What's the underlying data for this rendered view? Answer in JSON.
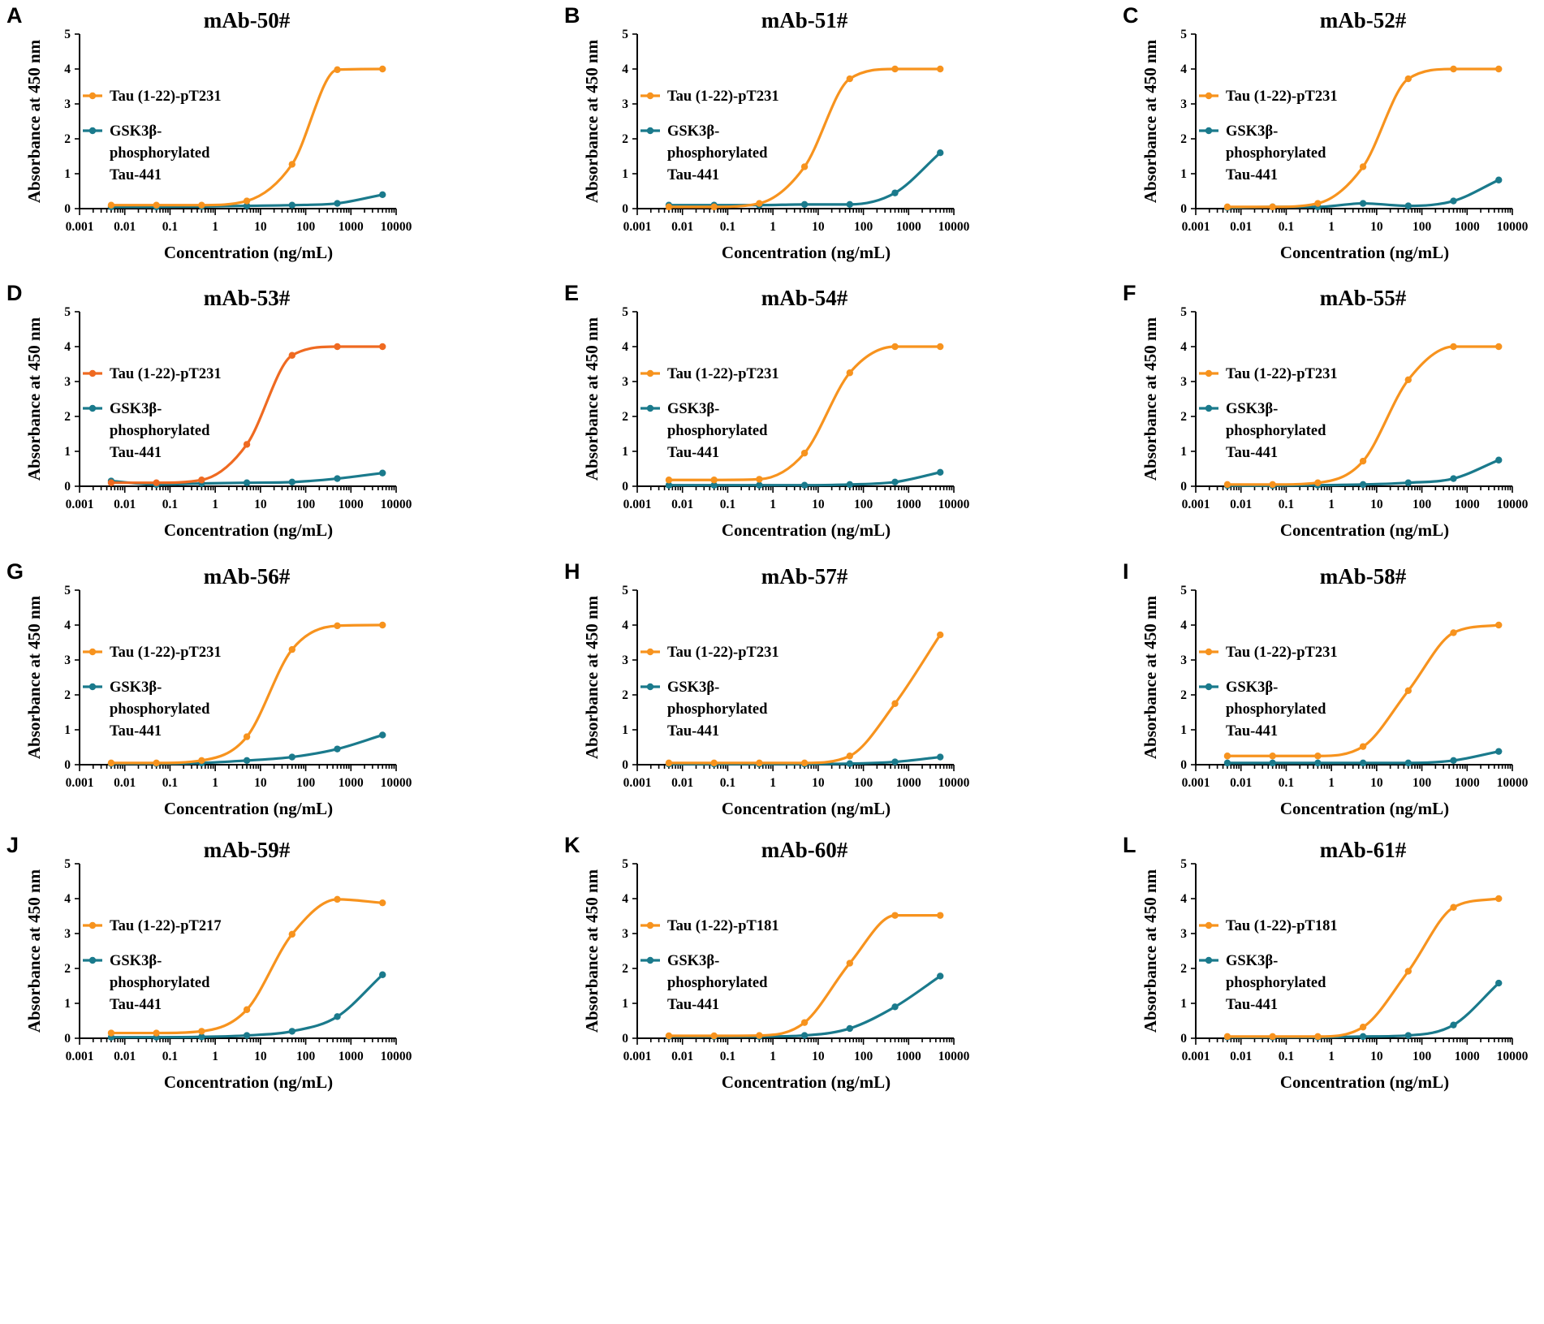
{
  "figure": {
    "colors": {
      "orange": "#F7931E",
      "red_orange": "#EF6A21",
      "teal": "#1A7A8C"
    },
    "x_axis_label": "Concentration (ng/mL)",
    "y_axis_label": "Absorbance at 450 nm",
    "x_tick_labels": [
      "0.001",
      "0.01",
      "0.1",
      "1",
      "10",
      "100",
      "1000",
      "10000"
    ],
    "y_tick_labels": [
      "0",
      "1",
      "2",
      "3",
      "4",
      "5"
    ]
  },
  "chart_data": [
    {
      "type": "line",
      "panel": "A",
      "title": "mAb-50#",
      "xscale": "log",
      "xlim": [
        0.001,
        10000
      ],
      "ylim": [
        0,
        5
      ],
      "xlabel": "Concentration (ng/mL)",
      "ylabel": "Absorbance at 450 nm",
      "x": [
        0.005,
        0.05,
        0.5,
        5,
        50,
        500,
        5000
      ],
      "series": [
        {
          "name": "Tau (1-22)-pT231",
          "color": "orange",
          "values": [
            0.1,
            0.1,
            0.1,
            0.22,
            1.27,
            3.98,
            4.0
          ]
        },
        {
          "name_lines": [
            "GSK3β-",
            "phosphorylated",
            "Tau-441"
          ],
          "color": "teal",
          "values": [
            0.05,
            0.05,
            0.06,
            0.08,
            0.1,
            0.15,
            0.4
          ]
        }
      ]
    },
    {
      "type": "line",
      "panel": "B",
      "title": "mAb-51#",
      "xscale": "log",
      "xlim": [
        0.001,
        10000
      ],
      "ylim": [
        0,
        5
      ],
      "xlabel": "Concentration (ng/mL)",
      "ylabel": "Absorbance at 450 nm",
      "x": [
        0.005,
        0.05,
        0.5,
        5,
        50,
        500,
        5000
      ],
      "series": [
        {
          "name": "Tau (1-22)-pT231",
          "color": "orange",
          "values": [
            0.05,
            0.05,
            0.15,
            1.2,
            3.72,
            4.0,
            4.0
          ]
        },
        {
          "name_lines": [
            "GSK3β-",
            "phosphorylated",
            "Tau-441"
          ],
          "color": "teal",
          "values": [
            0.1,
            0.1,
            0.1,
            0.12,
            0.12,
            0.45,
            1.6
          ]
        }
      ]
    },
    {
      "type": "line",
      "panel": "C",
      "title": "mAb-52#",
      "xscale": "log",
      "xlim": [
        0.001,
        10000
      ],
      "ylim": [
        0,
        5
      ],
      "xlabel": "Concentration (ng/mL)",
      "ylabel": "Absorbance at 450 nm",
      "x": [
        0.005,
        0.05,
        0.5,
        5,
        50,
        500,
        5000
      ],
      "series": [
        {
          "name": "Tau (1-22)-pT231",
          "color": "orange",
          "values": [
            0.05,
            0.05,
            0.15,
            1.2,
            3.72,
            4.0,
            4.0
          ]
        },
        {
          "name_lines": [
            "GSK3β-",
            "phosphorylated",
            "Tau-441"
          ],
          "color": "teal",
          "values": [
            0.03,
            0.05,
            0.05,
            0.15,
            0.08,
            0.22,
            0.82
          ]
        }
      ]
    },
    {
      "type": "line",
      "panel": "D",
      "title": "mAb-53#",
      "xscale": "log",
      "xlim": [
        0.001,
        10000
      ],
      "ylim": [
        0,
        5
      ],
      "xlabel": "Concentration (ng/mL)",
      "ylabel": "Absorbance at 450 nm",
      "x": [
        0.005,
        0.05,
        0.5,
        5,
        50,
        500,
        5000
      ],
      "series": [
        {
          "name": "Tau (1-22)-pT231",
          "color": "red_orange",
          "values": [
            0.1,
            0.1,
            0.18,
            1.2,
            3.75,
            4.0,
            4.0
          ]
        },
        {
          "name_lines": [
            "GSK3β-",
            "phosphorylated",
            "Tau-441"
          ],
          "color": "teal",
          "values": [
            0.15,
            0.05,
            0.08,
            0.1,
            0.12,
            0.22,
            0.38
          ]
        }
      ]
    },
    {
      "type": "line",
      "panel": "E",
      "title": "mAb-54#",
      "xscale": "log",
      "xlim": [
        0.001,
        10000
      ],
      "ylim": [
        0,
        5
      ],
      "xlabel": "Concentration (ng/mL)",
      "ylabel": "Absorbance at 450 nm",
      "x": [
        0.005,
        0.05,
        0.5,
        5,
        50,
        500,
        5000
      ],
      "series": [
        {
          "name": "Tau (1-22)-pT231",
          "color": "orange",
          "values": [
            0.18,
            0.18,
            0.2,
            0.95,
            3.25,
            4.0,
            4.0
          ]
        },
        {
          "name_lines": [
            "GSK3β-",
            "phosphorylated",
            "Tau-441"
          ],
          "color": "teal",
          "values": [
            0.03,
            0.03,
            0.03,
            0.03,
            0.05,
            0.12,
            0.4
          ]
        }
      ]
    },
    {
      "type": "line",
      "panel": "F",
      "title": "mAb-55#",
      "xscale": "log",
      "xlim": [
        0.001,
        10000
      ],
      "ylim": [
        0,
        5
      ],
      "xlabel": "Concentration (ng/mL)",
      "ylabel": "Absorbance at 450 nm",
      "x": [
        0.005,
        0.05,
        0.5,
        5,
        50,
        500,
        5000
      ],
      "series": [
        {
          "name": "Tau (1-22)-pT231",
          "color": "orange",
          "values": [
            0.05,
            0.05,
            0.1,
            0.72,
            3.05,
            4.0,
            4.0
          ]
        },
        {
          "name_lines": [
            "GSK3β-",
            "phosphorylated",
            "Tau-441"
          ],
          "color": "teal",
          "values": [
            0.02,
            0.02,
            0.03,
            0.05,
            0.1,
            0.22,
            0.75
          ]
        }
      ]
    },
    {
      "type": "line",
      "panel": "G",
      "title": "mAb-56#",
      "xscale": "log",
      "xlim": [
        0.001,
        10000
      ],
      "ylim": [
        0,
        5
      ],
      "xlabel": "Concentration (ng/mL)",
      "ylabel": "Absorbance at 450 nm",
      "x": [
        0.005,
        0.05,
        0.5,
        5,
        50,
        500,
        5000
      ],
      "series": [
        {
          "name": "Tau (1-22)-pT231",
          "color": "orange",
          "values": [
            0.05,
            0.05,
            0.12,
            0.8,
            3.3,
            3.98,
            4.0
          ]
        },
        {
          "name_lines": [
            "GSK3β-",
            "phosphorylated",
            "Tau-441"
          ],
          "color": "teal",
          "values": [
            0.03,
            0.03,
            0.05,
            0.12,
            0.22,
            0.45,
            0.85
          ]
        }
      ]
    },
    {
      "type": "line",
      "panel": "H",
      "title": "mAb-57#",
      "xscale": "log",
      "xlim": [
        0.001,
        10000
      ],
      "ylim": [
        0,
        5
      ],
      "xlabel": "Concentration (ng/mL)",
      "ylabel": "Absorbance at 450 nm",
      "x": [
        0.005,
        0.05,
        0.5,
        5,
        50,
        500,
        5000
      ],
      "series": [
        {
          "name": "Tau (1-22)-pT231",
          "color": "orange",
          "values": [
            0.05,
            0.05,
            0.05,
            0.05,
            0.25,
            1.75,
            3.72
          ]
        },
        {
          "name_lines": [
            "GSK3β-",
            "phosphorylated",
            "Tau-441"
          ],
          "color": "teal",
          "values": [
            0.02,
            0.02,
            0.02,
            0.02,
            0.03,
            0.08,
            0.22
          ]
        }
      ]
    },
    {
      "type": "line",
      "panel": "I",
      "title": "mAb-58#",
      "xscale": "log",
      "xlim": [
        0.001,
        10000
      ],
      "ylim": [
        0,
        5
      ],
      "xlabel": "Concentration (ng/mL)",
      "ylabel": "Absorbance at 450 nm",
      "x": [
        0.005,
        0.05,
        0.5,
        5,
        50,
        500,
        5000
      ],
      "series": [
        {
          "name": "Tau (1-22)-pT231",
          "color": "orange",
          "values": [
            0.25,
            0.25,
            0.25,
            0.52,
            2.12,
            3.78,
            4.0
          ]
        },
        {
          "name_lines": [
            "GSK3β-",
            "phosphorylated",
            "Tau-441"
          ],
          "color": "teal",
          "values": [
            0.05,
            0.05,
            0.05,
            0.05,
            0.05,
            0.12,
            0.38
          ]
        }
      ]
    },
    {
      "type": "line",
      "panel": "J",
      "title": "mAb-59#",
      "xscale": "log",
      "xlim": [
        0.001,
        10000
      ],
      "ylim": [
        0,
        5
      ],
      "xlabel": "Concentration (ng/mL)",
      "ylabel": "Absorbance at 450 nm",
      "x": [
        0.005,
        0.05,
        0.5,
        5,
        50,
        500,
        5000
      ],
      "series": [
        {
          "name": "Tau (1-22)-pT217",
          "color": "orange",
          "values": [
            0.15,
            0.15,
            0.2,
            0.82,
            2.98,
            3.98,
            3.88
          ]
        },
        {
          "name_lines": [
            "GSK3β-",
            "phosphorylated",
            "Tau-441"
          ],
          "color": "teal",
          "values": [
            0.03,
            0.03,
            0.04,
            0.08,
            0.2,
            0.62,
            1.82
          ]
        }
      ]
    },
    {
      "type": "line",
      "panel": "K",
      "title": "mAb-60#",
      "xscale": "log",
      "xlim": [
        0.001,
        10000
      ],
      "ylim": [
        0,
        5
      ],
      "xlabel": "Concentration (ng/mL)",
      "ylabel": "Absorbance at 450 nm",
      "x": [
        0.005,
        0.05,
        0.5,
        5,
        50,
        500,
        5000
      ],
      "series": [
        {
          "name": "Tau (1-22)-pT181",
          "color": "orange",
          "values": [
            0.07,
            0.07,
            0.08,
            0.45,
            2.15,
            3.52,
            3.52
          ]
        },
        {
          "name_lines": [
            "GSK3β-",
            "phosphorylated",
            "Tau-441"
          ],
          "color": "teal",
          "values": [
            0.05,
            0.05,
            0.05,
            0.08,
            0.28,
            0.9,
            1.78
          ]
        }
      ]
    },
    {
      "type": "line",
      "panel": "L",
      "title": "mAb-61#",
      "xscale": "log",
      "xlim": [
        0.001,
        10000
      ],
      "ylim": [
        0,
        5
      ],
      "xlabel": "Concentration (ng/mL)",
      "ylabel": "Absorbance at 450 nm",
      "x": [
        0.005,
        0.05,
        0.5,
        5,
        50,
        500,
        5000
      ],
      "series": [
        {
          "name": "Tau (1-22)-pT181",
          "color": "orange",
          "values": [
            0.05,
            0.05,
            0.05,
            0.32,
            1.92,
            3.75,
            4.0
          ]
        },
        {
          "name_lines": [
            "GSK3β-",
            "phosphorylated",
            "Tau-441"
          ],
          "color": "teal",
          "values": [
            0.03,
            0.03,
            0.03,
            0.05,
            0.08,
            0.38,
            1.58
          ]
        }
      ]
    }
  ]
}
